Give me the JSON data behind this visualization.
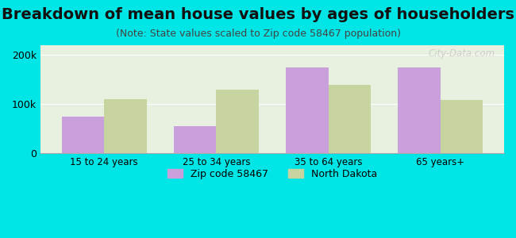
{
  "title": "Breakdown of mean house values by ages of householders",
  "subtitle": "(Note: State values scaled to Zip code 58467 population)",
  "categories": [
    "15 to 24 years",
    "25 to 34 years",
    "35 to 64 years",
    "65 years+"
  ],
  "zip_values": [
    75000,
    55000,
    175000,
    175000
  ],
  "state_values": [
    110000,
    130000,
    140000,
    108000
  ],
  "zip_color": "#c9a0dc",
  "state_color": "#c8d4a0",
  "background_color": "#00e5e5",
  "plot_bg_top": "#e8f4e8",
  "plot_bg_bottom": "#f8f8f0",
  "ylim": [
    0,
    220000
  ],
  "yticks": [
    0,
    100000,
    200000
  ],
  "ytick_labels": [
    "0",
    "100k",
    "200k"
  ],
  "legend_zip_label": "Zip code 58467",
  "legend_state_label": "North Dakota",
  "bar_width": 0.38,
  "title_fontsize": 14,
  "subtitle_fontsize": 9,
  "watermark": "City-Data.com"
}
